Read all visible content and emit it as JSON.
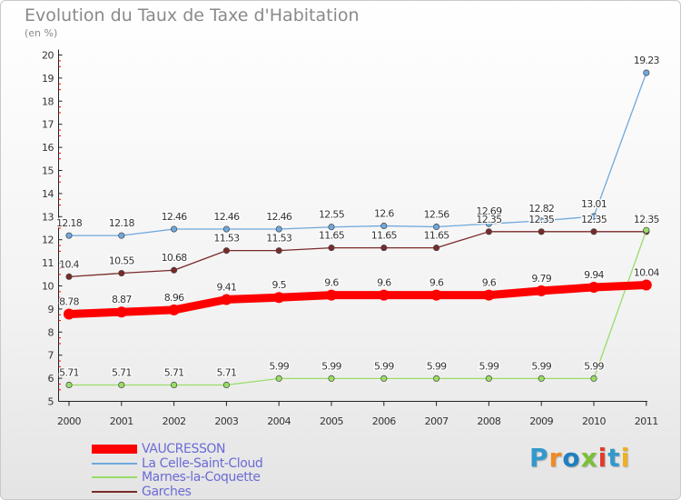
{
  "title": "Evolution du Taux de Taxe d'Habitation",
  "subtitle": "(en %)",
  "logo": {
    "text": "Proxiti",
    "letter_colors": [
      "#3399cc",
      "#f08a24",
      "#1f7fc0",
      "#7bbf3a",
      "#e23c2e",
      "#3399cc",
      "#f0b020"
    ]
  },
  "chart_data": {
    "type": "line",
    "x": [
      "2000",
      "2001",
      "2002",
      "2003",
      "2004",
      "2005",
      "2006",
      "2007",
      "2008",
      "2009",
      "2010",
      "2011"
    ],
    "ylim": [
      5,
      20
    ],
    "yticks": [
      "5",
      "6",
      "7",
      "8",
      "9",
      "10",
      "11",
      "12",
      "13",
      "14",
      "15",
      "16",
      "17",
      "18",
      "19",
      "20"
    ],
    "grid": false,
    "legend_position": "bottom-left",
    "series": [
      {
        "name": "VAUCRESSON",
        "color": "#ff0000",
        "values": [
          8.78,
          8.87,
          8.96,
          9.41,
          9.5,
          9.6,
          9.6,
          9.6,
          9.6,
          9.79,
          9.94,
          10.04
        ],
        "labels": [
          "8.78",
          "8.87",
          "8.96",
          "9.41",
          "9.5",
          "9.6",
          "9.6",
          "9.6",
          "9.6",
          "9.79",
          "9.94",
          "10.04"
        ]
      },
      {
        "name": "La Celle-Saint-Cloud",
        "color": "#6fa8dc",
        "values": [
          12.18,
          12.18,
          12.46,
          12.46,
          12.46,
          12.55,
          12.6,
          12.56,
          12.69,
          12.82,
          13.01,
          19.23
        ],
        "labels": [
          "12.18",
          "12.18",
          "12.46",
          "12.46",
          "12.46",
          "12.55",
          "12.6",
          "12.56",
          "12.69",
          "12.82",
          "13.01",
          "19.23"
        ]
      },
      {
        "name": "Marnes-la-Coquette",
        "color": "#99dd66",
        "values": [
          5.71,
          5.71,
          5.71,
          5.71,
          5.99,
          5.99,
          5.99,
          5.99,
          5.99,
          5.99,
          5.99,
          12.41
        ],
        "labels": [
          "5.71",
          "5.71",
          "5.71",
          "5.71",
          "5.99",
          "5.99",
          "5.99",
          "5.99",
          "5.99",
          "5.99",
          "5.99",
          "12.41"
        ]
      },
      {
        "name": "Garches",
        "color": "#7a2a2a",
        "values": [
          10.4,
          10.55,
          10.68,
          11.53,
          11.53,
          11.65,
          11.65,
          11.65,
          12.35,
          12.35,
          12.35,
          12.35
        ],
        "labels": [
          "10.4",
          "10.55",
          "10.68",
          "11.53",
          "11.53",
          "11.65",
          "11.65",
          "11.65",
          "12.35",
          "12.35",
          "12.35",
          "12.35"
        ]
      }
    ]
  }
}
